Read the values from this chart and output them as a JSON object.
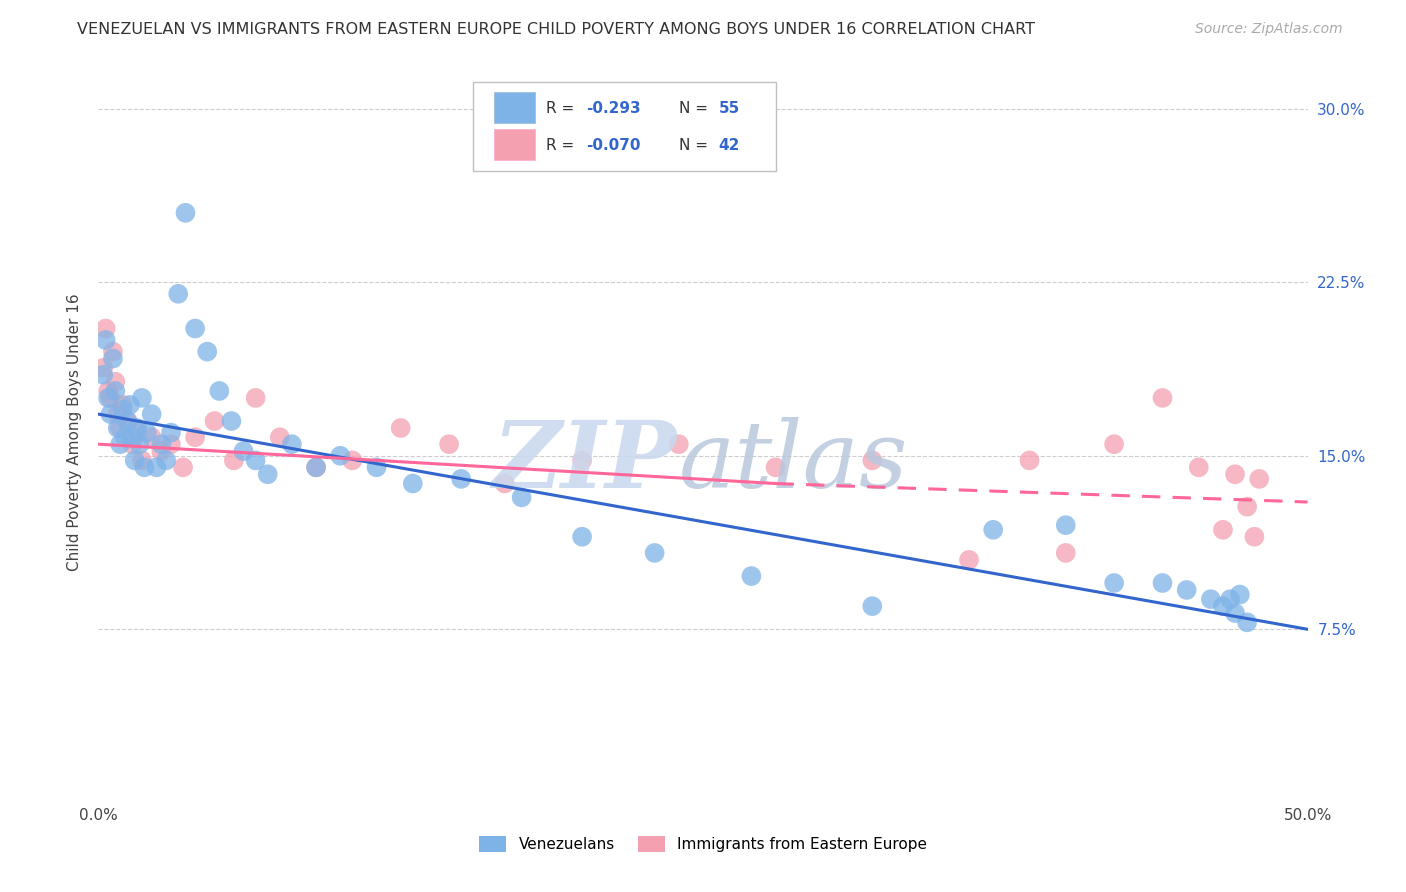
{
  "title": "VENEZUELAN VS IMMIGRANTS FROM EASTERN EUROPE CHILD POVERTY AMONG BOYS UNDER 16 CORRELATION CHART",
  "source": "Source: ZipAtlas.com",
  "ylabel": "Child Poverty Among Boys Under 16",
  "xlim": [
    0.0,
    0.5
  ],
  "ylim": [
    0.0,
    0.32
  ],
  "xticks": [
    0.0,
    0.1,
    0.2,
    0.3,
    0.4,
    0.5
  ],
  "xticklabels": [
    "0.0%",
    "",
    "",
    "",
    "",
    "50.0%"
  ],
  "yticks": [
    0.075,
    0.15,
    0.225,
    0.3
  ],
  "yticklabels": [
    "7.5%",
    "15.0%",
    "22.5%",
    "30.0%"
  ],
  "background_color": "#ffffff",
  "grid_color": "#c8c8c8",
  "venezuelan_color": "#7EB3E8",
  "eastern_europe_color": "#F4A0B0",
  "trend_venezuelan_color": "#3366CC",
  "trend_eastern_color": "#FF6699",
  "venezuelan_label": "Venezuelans",
  "eastern_label": "Immigrants from Eastern Europe",
  "venezuelan_x": [
    0.002,
    0.003,
    0.004,
    0.005,
    0.006,
    0.007,
    0.008,
    0.009,
    0.01,
    0.011,
    0.012,
    0.013,
    0.014,
    0.015,
    0.016,
    0.017,
    0.018,
    0.019,
    0.02,
    0.022,
    0.024,
    0.026,
    0.028,
    0.03,
    0.033,
    0.036,
    0.04,
    0.045,
    0.05,
    0.055,
    0.06,
    0.065,
    0.07,
    0.08,
    0.09,
    0.1,
    0.115,
    0.13,
    0.15,
    0.175,
    0.2,
    0.23,
    0.27,
    0.32,
    0.37,
    0.4,
    0.42,
    0.44,
    0.45,
    0.46,
    0.465,
    0.468,
    0.47,
    0.472,
    0.475
  ],
  "venezuelan_y": [
    0.185,
    0.2,
    0.175,
    0.168,
    0.192,
    0.178,
    0.162,
    0.155,
    0.17,
    0.158,
    0.165,
    0.172,
    0.158,
    0.148,
    0.162,
    0.155,
    0.175,
    0.145,
    0.16,
    0.168,
    0.145,
    0.155,
    0.148,
    0.16,
    0.22,
    0.255,
    0.205,
    0.195,
    0.178,
    0.165,
    0.152,
    0.148,
    0.142,
    0.155,
    0.145,
    0.15,
    0.145,
    0.138,
    0.14,
    0.132,
    0.115,
    0.108,
    0.098,
    0.085,
    0.118,
    0.12,
    0.095,
    0.095,
    0.092,
    0.088,
    0.085,
    0.088,
    0.082,
    0.09,
    0.078
  ],
  "eastern_x": [
    0.002,
    0.003,
    0.004,
    0.005,
    0.006,
    0.007,
    0.008,
    0.009,
    0.01,
    0.012,
    0.014,
    0.016,
    0.018,
    0.022,
    0.026,
    0.03,
    0.035,
    0.04,
    0.048,
    0.056,
    0.065,
    0.075,
    0.09,
    0.105,
    0.125,
    0.145,
    0.168,
    0.2,
    0.24,
    0.28,
    0.32,
    0.36,
    0.385,
    0.4,
    0.42,
    0.44,
    0.455,
    0.465,
    0.47,
    0.475,
    0.478,
    0.48
  ],
  "eastern_y": [
    0.188,
    0.205,
    0.178,
    0.175,
    0.195,
    0.182,
    0.168,
    0.162,
    0.172,
    0.165,
    0.155,
    0.16,
    0.148,
    0.158,
    0.152,
    0.155,
    0.145,
    0.158,
    0.165,
    0.148,
    0.175,
    0.158,
    0.145,
    0.148,
    0.162,
    0.155,
    0.138,
    0.148,
    0.155,
    0.145,
    0.148,
    0.105,
    0.148,
    0.108,
    0.155,
    0.175,
    0.145,
    0.118,
    0.142,
    0.128,
    0.115,
    0.14
  ],
  "trend_ven_x0": 0.0,
  "trend_ven_y0": 0.168,
  "trend_ven_x1": 0.5,
  "trend_ven_y1": 0.075,
  "trend_east_solid_x0": 0.0,
  "trend_east_solid_y0": 0.155,
  "trend_east_solid_x1": 0.28,
  "trend_east_solid_y1": 0.138,
  "trend_east_dash_x0": 0.28,
  "trend_east_dash_y0": 0.138,
  "trend_east_dash_x1": 0.5,
  "trend_east_dash_y1": 0.13
}
